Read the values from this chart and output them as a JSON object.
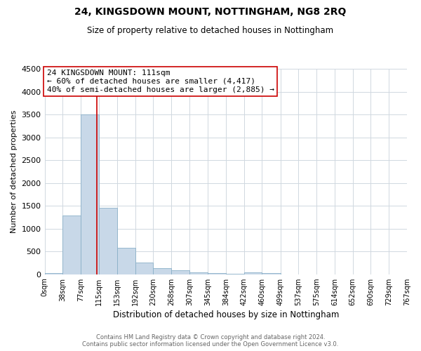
{
  "title": "24, KINGSDOWN MOUNT, NOTTINGHAM, NG8 2RQ",
  "subtitle": "Size of property relative to detached houses in Nottingham",
  "xlabel": "Distribution of detached houses by size in Nottingham",
  "ylabel": "Number of detached properties",
  "bin_edges": [
    0,
    38,
    77,
    115,
    153,
    192,
    230,
    268,
    307,
    345,
    384,
    422,
    460,
    499,
    537,
    575,
    614,
    652,
    690,
    729,
    767
  ],
  "bin_labels": [
    "0sqm",
    "38sqm",
    "77sqm",
    "115sqm",
    "153sqm",
    "192sqm",
    "230sqm",
    "268sqm",
    "307sqm",
    "345sqm",
    "384sqm",
    "422sqm",
    "460sqm",
    "499sqm",
    "537sqm",
    "575sqm",
    "614sqm",
    "652sqm",
    "690sqm",
    "729sqm",
    "767sqm"
  ],
  "bar_heights": [
    30,
    1280,
    3500,
    1460,
    575,
    250,
    135,
    80,
    40,
    20,
    10,
    40,
    30,
    0,
    0,
    0,
    0,
    0,
    0,
    0
  ],
  "bar_color": "#c8d8e8",
  "bar_edge_color": "#8ab0c8",
  "property_line_x": 111,
  "property_line_color": "#cc0000",
  "ylim": [
    0,
    4500
  ],
  "yticks": [
    0,
    500,
    1000,
    1500,
    2000,
    2500,
    3000,
    3500,
    4000,
    4500
  ],
  "annotation_title": "24 KINGSDOWN MOUNT: 111sqm",
  "annotation_line1": "← 60% of detached houses are smaller (4,417)",
  "annotation_line2": "40% of semi-detached houses are larger (2,885) →",
  "annotation_box_color": "#ffffff",
  "annotation_box_edge": "#cc0000",
  "footer_line1": "Contains HM Land Registry data © Crown copyright and database right 2024.",
  "footer_line2": "Contains public sector information licensed under the Open Government Licence v3.0.",
  "background_color": "#ffffff",
  "grid_color": "#d0d8e0"
}
